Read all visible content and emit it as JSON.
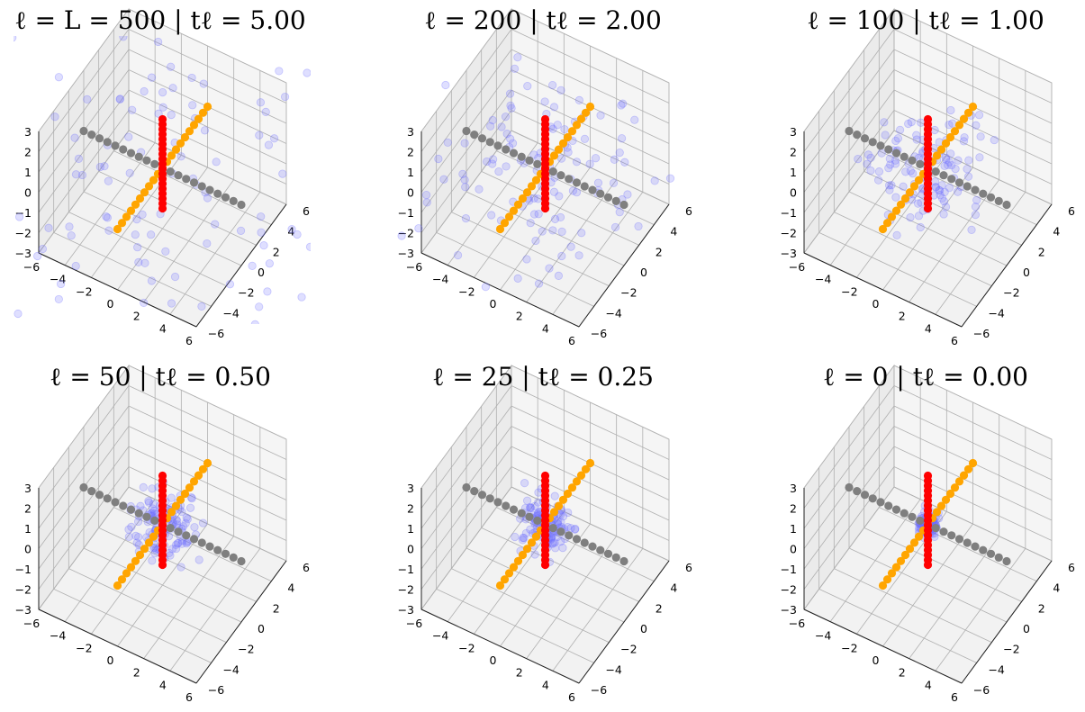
{
  "figure": {
    "panels": [
      {
        "title": "ℓ = L = 500 | tℓ = 5.00",
        "noise_spread": 1.0
      },
      {
        "title": "ℓ = 200 | tℓ = 2.00",
        "noise_spread": 0.55
      },
      {
        "title": "ℓ = 100 | tℓ = 1.00",
        "noise_spread": 0.32
      },
      {
        "title": "ℓ = 50 | tℓ = 0.50",
        "noise_spread": 0.2
      },
      {
        "title": "ℓ = 25 | tℓ = 0.25",
        "noise_spread": 0.14
      },
      {
        "title": "ℓ = 0 | tℓ = 0.00",
        "noise_spread": 0.06
      }
    ],
    "axes": {
      "x_ticks": [
        "−6",
        "−4",
        "−2",
        "0",
        "2",
        "4",
        "6"
      ],
      "y_ticks": [
        "−6",
        "−4",
        "−2",
        "0",
        "2",
        "4",
        "6"
      ],
      "z_ticks": [
        "−3",
        "−2",
        "−1",
        "0",
        "1",
        "2",
        "3"
      ]
    },
    "colors": {
      "noise": "#6f6fff",
      "x_line": "#7f7f7f",
      "y_line": "#ffa500",
      "z_line": "#ff0000"
    }
  },
  "chart_data": [
    {
      "type": "scatter",
      "title": "ℓ = L = 500 | tℓ = 5.00",
      "xlim": [
        -6,
        6
      ],
      "ylim": [
        -6,
        6
      ],
      "zlim": [
        -3,
        3
      ],
      "grid": true,
      "series": [
        {
          "values": "diffusion samples (noise level 5.00)"
        }
      ]
    },
    {
      "type": "scatter",
      "title": "ℓ = 200 | tℓ = 2.00",
      "xlim": [
        -6,
        6
      ],
      "ylim": [
        -6,
        6
      ],
      "zlim": [
        -3,
        3
      ],
      "grid": true
    },
    {
      "type": "scatter",
      "title": "ℓ = 100 | tℓ = 1.00",
      "xlim": [
        -6,
        6
      ],
      "ylim": [
        -6,
        6
      ],
      "zlim": [
        -3,
        3
      ],
      "grid": true
    },
    {
      "type": "scatter",
      "title": "ℓ = 50 | tℓ = 0.50",
      "xlim": [
        -6,
        6
      ],
      "ylim": [
        -6,
        6
      ],
      "zlim": [
        -3,
        3
      ],
      "grid": true
    },
    {
      "type": "scatter",
      "title": "ℓ = 25 | tℓ = 0.25",
      "xlim": [
        -6,
        6
      ],
      "ylim": [
        -6,
        6
      ],
      "zlim": [
        -3,
        3
      ],
      "grid": true
    },
    {
      "type": "scatter",
      "title": "ℓ = 0 | tℓ = 0.00",
      "xlim": [
        -6,
        6
      ],
      "ylim": [
        -6,
        6
      ],
      "zlim": [
        -3,
        3
      ],
      "grid": true
    }
  ]
}
